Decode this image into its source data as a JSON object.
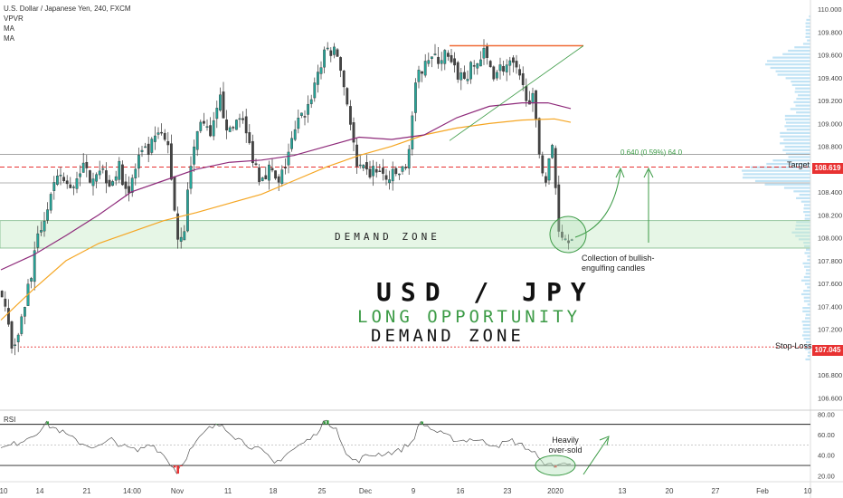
{
  "legend": {
    "symbol": "U.S. Dollar / Japanese Yen, 240, FXCM",
    "indicators": [
      "VPVR",
      "MA",
      "MA"
    ]
  },
  "annotations": {
    "title": "USD / JPY",
    "subtitle": "LONG OPPORTUNITY",
    "subtitle2": "DEMAND ZONE",
    "zone_label": "DEMAND ZONE",
    "collection_note": [
      "Collection of bullish-",
      "engulfing candles"
    ],
    "oversold_note": [
      "Heavily",
      "over-sold"
    ],
    "measure": "0.640 (0.59%) 64.0",
    "target_text": "Target",
    "stoploss_text": "Stop-Loss",
    "rsi_label": "RSI"
  },
  "colors": {
    "up": "#26a69a",
    "down": "#444444",
    "ma_fast": "#8e2a7a",
    "ma_slow": "#f5a623",
    "accent_green": "#3c9b46",
    "target_red": "#e83232",
    "resistance": "#f06a35",
    "vpvr": "#9fd4ef"
  },
  "chart_data": {
    "type": "candlestick",
    "symbol": "USDJPY",
    "timeframe": "240",
    "x_ticks": [
      "10",
      "14",
      "21",
      "14:00",
      "Nov",
      "11",
      "18",
      "25",
      "Dec",
      "9",
      "16",
      "23",
      "2020",
      "13",
      "20",
      "27",
      "Feb",
      "10"
    ],
    "y_ticks": [
      106.6,
      106.8,
      107.0,
      107.2,
      107.4,
      107.6,
      107.8,
      108.0,
      108.2,
      108.4,
      108.6,
      108.8,
      109.0,
      109.2,
      109.4,
      109.6,
      109.8,
      110.0
    ],
    "y_tick_labels": [
      "106.600",
      "106.800",
      "107.000",
      "107.200",
      "107.400",
      "107.600",
      "107.800",
      "108.000",
      "108.200",
      "108.400",
      "108.600",
      "108.800",
      "109.000",
      "109.200",
      "109.400",
      "109.600",
      "109.800",
      "110.000"
    ],
    "ylim": [
      106.5,
      110.08
    ],
    "levels": {
      "target": 108.619,
      "target_label": "108.619",
      "stop_loss": 107.045,
      "stop_loss_label": "107.045",
      "demand_zone": [
        107.91,
        108.15
      ],
      "resistance": 109.68,
      "hline_upper": 108.73,
      "hline_mid": 108.48
    },
    "price_path": [
      [
        0,
        107.55
      ],
      [
        3,
        107.05
      ],
      [
        6,
        107.3
      ],
      [
        9,
        107.7
      ],
      [
        12,
        108.1
      ],
      [
        15,
        108.35
      ],
      [
        18,
        108.55
      ],
      [
        21,
        108.4
      ],
      [
        24,
        108.62
      ],
      [
        27,
        108.55
      ],
      [
        30,
        108.62
      ],
      [
        33,
        108.5
      ],
      [
        36,
        108.6
      ],
      [
        39,
        108.4
      ],
      [
        42,
        108.7
      ],
      [
        45,
        108.75
      ],
      [
        48,
        108.9
      ],
      [
        51,
        108.8
      ],
      [
        54,
        108.0
      ],
      [
        56,
        108.1
      ],
      [
        58,
        108.65
      ],
      [
        61,
        109.05
      ],
      [
        64,
        108.85
      ],
      [
        67,
        109.2
      ],
      [
        70,
        108.9
      ],
      [
        73,
        109.1
      ],
      [
        76,
        108.8
      ],
      [
        79,
        108.55
      ],
      [
        82,
        108.6
      ],
      [
        85,
        108.45
      ],
      [
        88,
        108.75
      ],
      [
        91,
        109.0
      ],
      [
        94,
        109.15
      ],
      [
        97,
        109.45
      ],
      [
        100,
        109.65
      ],
      [
        103,
        109.6
      ],
      [
        106,
        109.2
      ],
      [
        109,
        108.6
      ],
      [
        112,
        108.55
      ],
      [
        115,
        108.6
      ],
      [
        118,
        108.5
      ],
      [
        121,
        108.55
      ],
      [
        124,
        108.6
      ],
      [
        127,
        109.3
      ],
      [
        130,
        109.6
      ],
      [
        133,
        109.55
      ],
      [
        136,
        109.6
      ],
      [
        139,
        109.45
      ],
      [
        142,
        109.4
      ],
      [
        145,
        109.5
      ],
      [
        148,
        109.6
      ],
      [
        151,
        109.45
      ],
      [
        154,
        109.5
      ],
      [
        157,
        109.5
      ],
      [
        160,
        109.3
      ],
      [
        163,
        109.2
      ],
      [
        165,
        108.75
      ],
      [
        167,
        108.5
      ],
      [
        169,
        108.8
      ],
      [
        171,
        108.1
      ],
      [
        173,
        108.0
      ],
      [
        175,
        108.05
      ]
    ],
    "ma_fast_path": [
      [
        0,
        107.72
      ],
      [
        10,
        107.85
      ],
      [
        20,
        108.02
      ],
      [
        30,
        108.2
      ],
      [
        40,
        108.4
      ],
      [
        50,
        108.5
      ],
      [
        60,
        108.6
      ],
      [
        70,
        108.66
      ],
      [
        80,
        108.68
      ],
      [
        90,
        108.72
      ],
      [
        100,
        108.8
      ],
      [
        110,
        108.88
      ],
      [
        120,
        108.86
      ],
      [
        130,
        108.9
      ],
      [
        140,
        109.05
      ],
      [
        150,
        109.15
      ],
      [
        160,
        109.18
      ],
      [
        168,
        109.18
      ],
      [
        175,
        109.13
      ]
    ],
    "ma_slow_path": [
      [
        0,
        107.28
      ],
      [
        10,
        107.55
      ],
      [
        20,
        107.8
      ],
      [
        30,
        107.95
      ],
      [
        40,
        108.05
      ],
      [
        50,
        108.15
      ],
      [
        60,
        108.22
      ],
      [
        70,
        108.3
      ],
      [
        80,
        108.38
      ],
      [
        90,
        108.5
      ],
      [
        100,
        108.62
      ],
      [
        110,
        108.72
      ],
      [
        120,
        108.8
      ],
      [
        130,
        108.9
      ],
      [
        140,
        108.96
      ],
      [
        150,
        109.0
      ],
      [
        160,
        109.03
      ],
      [
        170,
        109.04
      ],
      [
        175,
        109.01
      ]
    ],
    "rsi": {
      "levels": [
        70,
        30
      ],
      "ylim": [
        16,
        82
      ],
      "y_ticks": [
        20,
        40,
        60,
        80
      ],
      "y_tick_labels": [
        "20.00",
        "40.00",
        "60.00",
        "80.00"
      ],
      "path": [
        [
          0,
          46
        ],
        [
          5,
          52
        ],
        [
          10,
          60
        ],
        [
          14,
          70
        ],
        [
          18,
          64
        ],
        [
          22,
          56
        ],
        [
          26,
          50
        ],
        [
          30,
          48
        ],
        [
          34,
          55
        ],
        [
          38,
          48
        ],
        [
          42,
          44
        ],
        [
          46,
          52
        ],
        [
          50,
          40
        ],
        [
          54,
          24
        ],
        [
          58,
          44
        ],
        [
          62,
          60
        ],
        [
          64,
          66
        ],
        [
          68,
          70
        ],
        [
          72,
          58
        ],
        [
          76,
          50
        ],
        [
          80,
          44
        ],
        [
          84,
          32
        ],
        [
          88,
          42
        ],
        [
          92,
          50
        ],
        [
          96,
          58
        ],
        [
          99,
          72
        ],
        [
          103,
          68
        ],
        [
          106,
          40
        ],
        [
          109,
          34
        ],
        [
          113,
          40
        ],
        [
          118,
          42
        ],
        [
          122,
          44
        ],
        [
          126,
          52
        ],
        [
          129,
          72
        ],
        [
          133,
          64
        ],
        [
          137,
          58
        ],
        [
          141,
          54
        ],
        [
          145,
          56
        ],
        [
          149,
          52
        ],
        [
          153,
          50
        ],
        [
          157,
          54
        ],
        [
          161,
          48
        ],
        [
          164,
          42
        ],
        [
          166,
          32
        ],
        [
          168,
          34
        ],
        [
          170,
          26
        ],
        [
          172,
          34
        ],
        [
          175,
          30
        ]
      ]
    }
  }
}
